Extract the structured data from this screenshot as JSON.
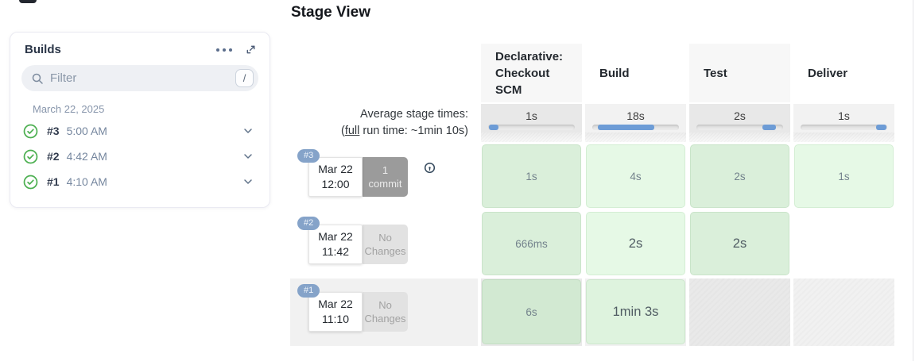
{
  "builds_panel": {
    "title": "Builds",
    "filter": {
      "placeholder": "Filter",
      "shortcut_key": "/"
    },
    "date_header": "March 22, 2025",
    "builds": [
      {
        "number": "#3",
        "time": "5:00 AM",
        "status": "success"
      },
      {
        "number": "#2",
        "time": "4:42 AM",
        "status": "success"
      },
      {
        "number": "#1",
        "time": "4:10 AM",
        "status": "success"
      }
    ]
  },
  "stage_view": {
    "title": "Stage View",
    "columns": [
      "Declarative: Checkout SCM",
      "Build",
      "Test",
      "Deliver"
    ],
    "average_row": {
      "label_line1": "Average stage times:",
      "label_line2_open": "(",
      "label_line2_link": "full",
      "label_line2_rest": " run time: ~1min 10s)",
      "stage_times": [
        "1s",
        "18s",
        "2s",
        "1s"
      ],
      "bars": [
        {
          "left_pct": 1,
          "width_pct": 11
        },
        {
          "left_pct": 6,
          "width_pct": 66
        },
        {
          "left_pct": 76,
          "width_pct": 16
        },
        {
          "left_pct": 87,
          "width_pct": 12
        }
      ]
    },
    "runs": [
      {
        "id": "#3",
        "date": "Mar 22",
        "time": "12:00",
        "shaded": false,
        "changes": {
          "line1": "1",
          "line2": "commit",
          "type": "commits"
        },
        "has_changes_icon": true,
        "stages": [
          {
            "duration": "1s",
            "status": "success",
            "emphasis": false
          },
          {
            "duration": "4s",
            "status": "success",
            "emphasis": false
          },
          {
            "duration": "2s",
            "status": "success",
            "emphasis": false
          },
          {
            "duration": "1s",
            "status": "success",
            "emphasis": false
          }
        ]
      },
      {
        "id": "#2",
        "date": "Mar 22",
        "time": "11:42",
        "shaded": false,
        "changes": {
          "line1": "No",
          "line2": "Changes",
          "type": "none"
        },
        "has_changes_icon": false,
        "stages": [
          {
            "duration": "666ms",
            "status": "success",
            "emphasis": false
          },
          {
            "duration": "2s",
            "status": "success",
            "emphasis": true
          },
          {
            "duration": "2s",
            "status": "success",
            "emphasis": true
          },
          {
            "duration": "",
            "status": "empty",
            "emphasis": false
          }
        ]
      },
      {
        "id": "#1",
        "date": "Mar 22",
        "time": "11:10",
        "shaded": true,
        "changes": {
          "line1": "No",
          "line2": "Changes",
          "type": "none"
        },
        "has_changes_icon": false,
        "stages": [
          {
            "duration": "6s",
            "status": "success",
            "emphasis": false
          },
          {
            "duration": "1min 3s",
            "status": "success",
            "emphasis": true
          },
          {
            "duration": "",
            "status": "empty",
            "emphasis": false
          },
          {
            "duration": "",
            "status": "empty",
            "emphasis": false
          }
        ]
      }
    ]
  },
  "colors": {
    "accent_blue": "#6d9cd6",
    "badge_blue": "#85a3c9",
    "success_green": "#4caf50",
    "stage_green_light": "#e6f9e6",
    "stage_green_dark": "#daefda",
    "avg_cell_gray": "#e8e8e8",
    "row_stripe_gray": "#f1f1f1"
  }
}
